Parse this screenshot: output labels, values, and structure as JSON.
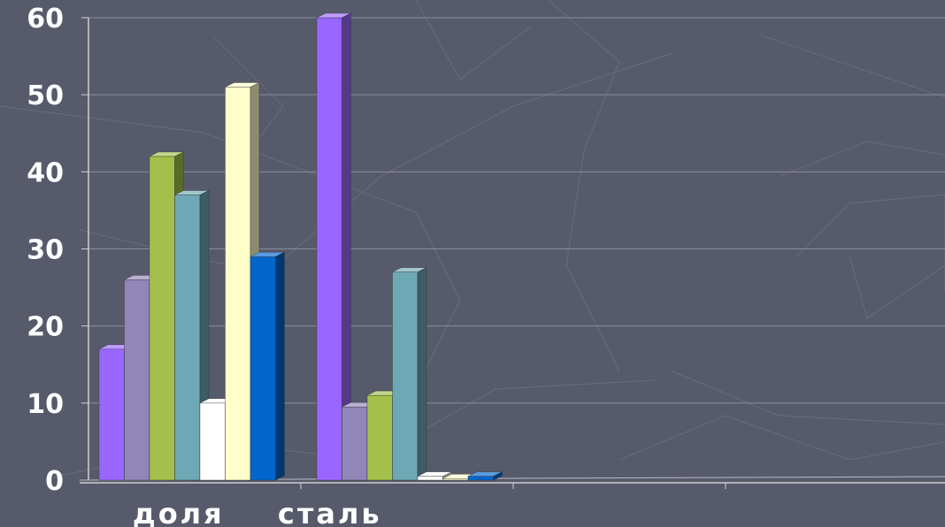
{
  "chart_data": {
    "type": "bar",
    "style": "3d-clustered-columns",
    "title": "",
    "xlabel": "",
    "ylabel": "",
    "ylim": [
      0,
      60
    ],
    "yticks": [
      "0",
      "10",
      "20",
      "30",
      "40",
      "50",
      "60"
    ],
    "grid": true,
    "legend": "none",
    "categories": [
      "доля",
      "сталь",
      "",
      ""
    ],
    "series": [
      {
        "color": "#9966ff",
        "values": [
          17,
          60,
          null,
          null
        ]
      },
      {
        "color": "#9186b8",
        "values": [
          26,
          9.5,
          null,
          null
        ]
      },
      {
        "color": "#a4c04a",
        "values": [
          42,
          11,
          null,
          null
        ]
      },
      {
        "color": "#6ea8b4",
        "values": [
          37,
          27,
          null,
          null
        ]
      },
      {
        "color": "#ffffff",
        "values": [
          10,
          0.5,
          null,
          null
        ]
      },
      {
        "color": "#ffffcc",
        "values": [
          51,
          0.2,
          null,
          null
        ]
      },
      {
        "color": "#0066cc",
        "values": [
          29,
          0.5,
          null,
          null
        ]
      }
    ]
  },
  "colors": {
    "background": "#575a6a",
    "gridline": "#8a8d9c",
    "axis": "#d0d0d0",
    "text": "#ffffff"
  }
}
